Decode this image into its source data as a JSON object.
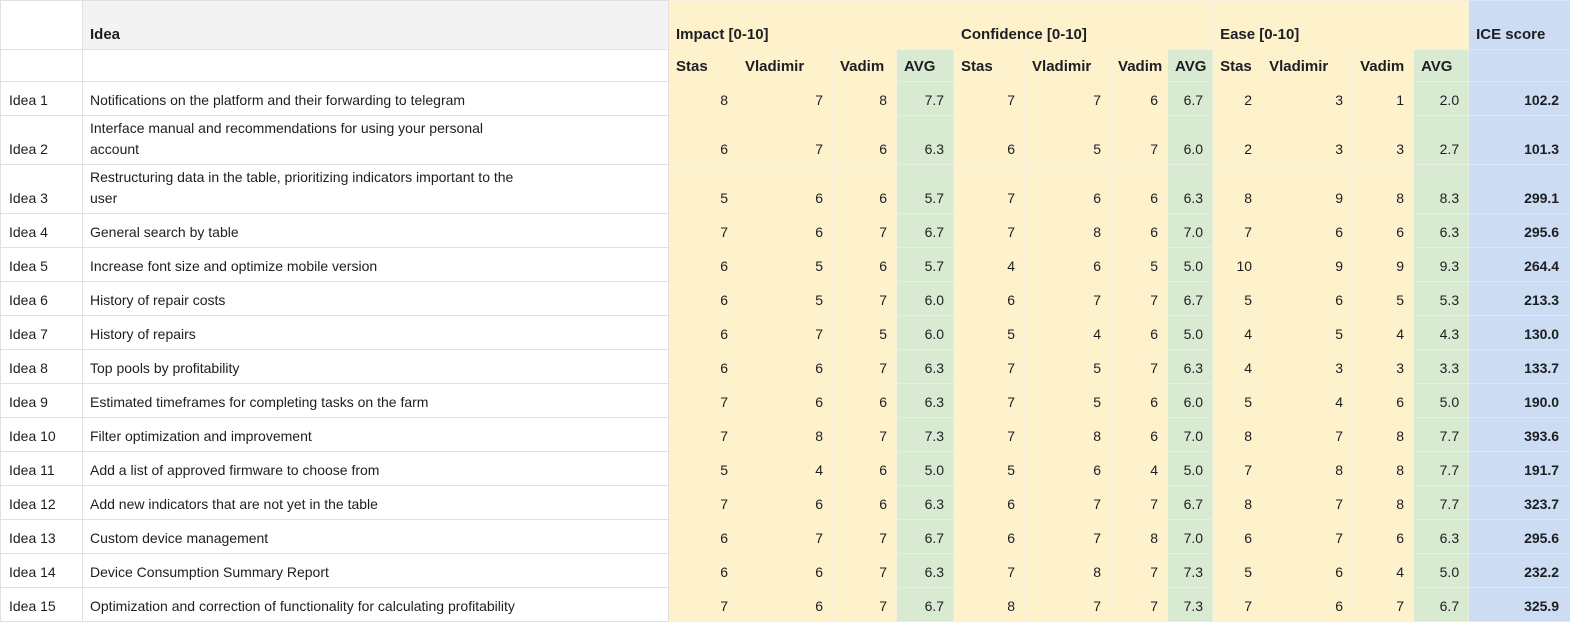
{
  "table": {
    "idea_header": "Idea",
    "groups": [
      {
        "label": "Impact [0-10]"
      },
      {
        "label": "Confidence [0-10]"
      },
      {
        "label": "Ease [0-10]"
      }
    ],
    "subheaders": [
      "Stas",
      "Vladimir",
      "Vadim",
      "AVG"
    ],
    "ice_header": "ICE score",
    "colors": {
      "section_fill": "#fdf2cc",
      "avg_fill": "#d9ead3",
      "ice_fill": "#cbdcf3",
      "idea_header_fill": "#f3f3f3"
    },
    "rows": [
      {
        "label": "Idea 1",
        "desc": "Notifications on the platform and their forwarding to telegram",
        "impact": [
          8,
          7,
          8
        ],
        "impact_avg": "7.7",
        "confidence": [
          7,
          7,
          6
        ],
        "confidence_avg": "6.7",
        "ease": [
          2,
          3,
          1
        ],
        "ease_avg": "2.0",
        "ice": "102.2"
      },
      {
        "label": "Idea 2",
        "desc": "Interface manual and recommendations for using your personal\naccount",
        "impact": [
          6,
          7,
          6
        ],
        "impact_avg": "6.3",
        "confidence": [
          6,
          5,
          7
        ],
        "confidence_avg": "6.0",
        "ease": [
          2,
          3,
          3
        ],
        "ease_avg": "2.7",
        "ice": "101.3"
      },
      {
        "label": "Idea 3",
        "desc": "Restructuring data in the table, prioritizing indicators important to the\nuser",
        "impact": [
          5,
          6,
          6
        ],
        "impact_avg": "5.7",
        "confidence": [
          7,
          6,
          6
        ],
        "confidence_avg": "6.3",
        "ease": [
          8,
          9,
          8
        ],
        "ease_avg": "8.3",
        "ice": "299.1"
      },
      {
        "label": "Idea 4",
        "desc": "General search by table",
        "impact": [
          7,
          6,
          7
        ],
        "impact_avg": "6.7",
        "confidence": [
          7,
          8,
          6
        ],
        "confidence_avg": "7.0",
        "ease": [
          7,
          6,
          6
        ],
        "ease_avg": "6.3",
        "ice": "295.6"
      },
      {
        "label": "Idea 5",
        "desc": "Increase font size and optimize mobile version",
        "impact": [
          6,
          5,
          6
        ],
        "impact_avg": "5.7",
        "confidence": [
          4,
          6,
          5
        ],
        "confidence_avg": "5.0",
        "ease": [
          10,
          9,
          9
        ],
        "ease_avg": "9.3",
        "ice": "264.4"
      },
      {
        "label": "Idea 6",
        "desc": "History of repair costs",
        "impact": [
          6,
          5,
          7
        ],
        "impact_avg": "6.0",
        "confidence": [
          6,
          7,
          7
        ],
        "confidence_avg": "6.7",
        "ease": [
          5,
          6,
          5
        ],
        "ease_avg": "5.3",
        "ice": "213.3"
      },
      {
        "label": "Idea 7",
        "desc": "History of repairs",
        "impact": [
          6,
          7,
          5
        ],
        "impact_avg": "6.0",
        "confidence": [
          5,
          4,
          6
        ],
        "confidence_avg": "5.0",
        "ease": [
          4,
          5,
          4
        ],
        "ease_avg": "4.3",
        "ice": "130.0"
      },
      {
        "label": "Idea 8",
        "desc": "Top pools by profitability",
        "impact": [
          6,
          6,
          7
        ],
        "impact_avg": "6.3",
        "confidence": [
          7,
          5,
          7
        ],
        "confidence_avg": "6.3",
        "ease": [
          4,
          3,
          3
        ],
        "ease_avg": "3.3",
        "ice": "133.7"
      },
      {
        "label": "Idea 9",
        "desc": "Estimated timeframes for completing tasks on the farm",
        "impact": [
          7,
          6,
          6
        ],
        "impact_avg": "6.3",
        "confidence": [
          7,
          5,
          6
        ],
        "confidence_avg": "6.0",
        "ease": [
          5,
          4,
          6
        ],
        "ease_avg": "5.0",
        "ice": "190.0"
      },
      {
        "label": "Idea 10",
        "desc": "Filter optimization and improvement",
        "impact": [
          7,
          8,
          7
        ],
        "impact_avg": "7.3",
        "confidence": [
          7,
          8,
          6
        ],
        "confidence_avg": "7.0",
        "ease": [
          8,
          7,
          8
        ],
        "ease_avg": "7.7",
        "ice": "393.6"
      },
      {
        "label": "Idea 11",
        "desc": "Add a list of approved firmware to choose from",
        "impact": [
          5,
          4,
          6
        ],
        "impact_avg": "5.0",
        "confidence": [
          5,
          6,
          4
        ],
        "confidence_avg": "5.0",
        "ease": [
          7,
          8,
          8
        ],
        "ease_avg": "7.7",
        "ice": "191.7"
      },
      {
        "label": "Idea 12",
        "desc": "Add new indicators that are not yet in the table",
        "impact": [
          7,
          6,
          6
        ],
        "impact_avg": "6.3",
        "confidence": [
          6,
          7,
          7
        ],
        "confidence_avg": "6.7",
        "ease": [
          8,
          7,
          8
        ],
        "ease_avg": "7.7",
        "ice": "323.7"
      },
      {
        "label": "Idea 13",
        "desc": "Custom device management",
        "impact": [
          6,
          7,
          7
        ],
        "impact_avg": "6.7",
        "confidence": [
          6,
          7,
          8
        ],
        "confidence_avg": "7.0",
        "ease": [
          6,
          7,
          6
        ],
        "ease_avg": "6.3",
        "ice": "295.6"
      },
      {
        "label": "Idea 14",
        "desc": "Device Consumption Summary Report",
        "impact": [
          6,
          6,
          7
        ],
        "impact_avg": "6.3",
        "confidence": [
          7,
          8,
          7
        ],
        "confidence_avg": "7.3",
        "ease": [
          5,
          6,
          4
        ],
        "ease_avg": "5.0",
        "ice": "232.2"
      },
      {
        "label": "Idea 15",
        "desc": "Optimization and correction of functionality for calculating profitability",
        "impact": [
          7,
          6,
          7
        ],
        "impact_avg": "6.7",
        "confidence": [
          8,
          7,
          7
        ],
        "confidence_avg": "7.3",
        "ease": [
          7,
          6,
          7
        ],
        "ease_avg": "6.7",
        "ice": "325.9"
      }
    ]
  }
}
